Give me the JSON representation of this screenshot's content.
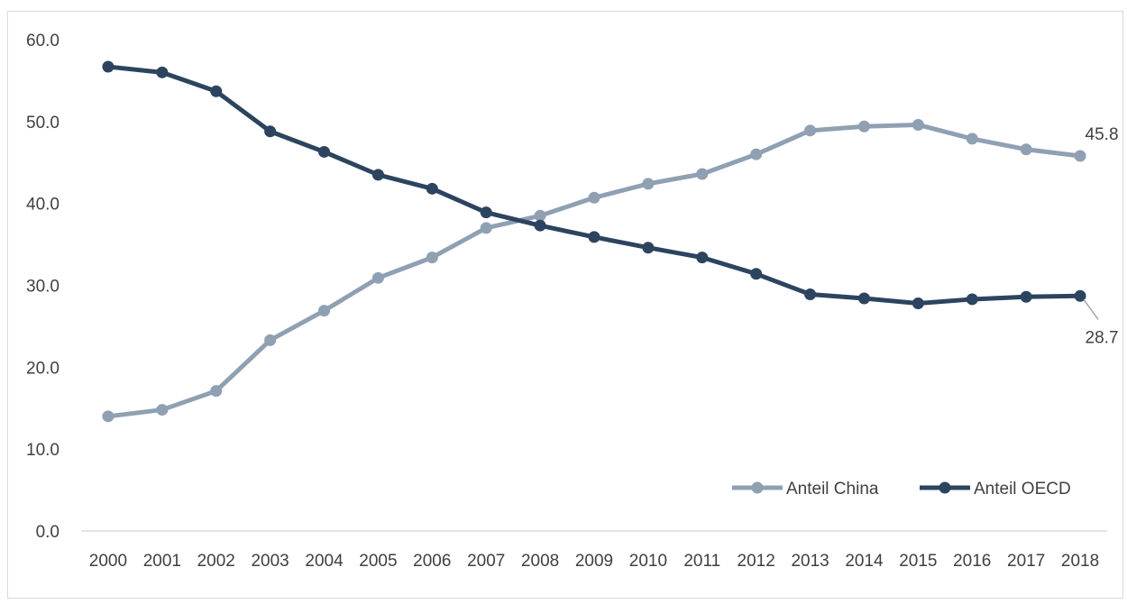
{
  "chart_data": {
    "type": "line",
    "title": "",
    "xlabel": "",
    "ylabel": "",
    "categories": [
      "2000",
      "2001",
      "2002",
      "2003",
      "2004",
      "2005",
      "2006",
      "2007",
      "2008",
      "2009",
      "2010",
      "2011",
      "2012",
      "2013",
      "2014",
      "2015",
      "2016",
      "2017",
      "2018"
    ],
    "ylim": [
      0,
      60
    ],
    "yticks": [
      "0.0",
      "10.0",
      "20.0",
      "30.0",
      "40.0",
      "50.0",
      "60.0"
    ],
    "grid": false,
    "legend_position": "bottom-right",
    "series": [
      {
        "name": "Anteil China",
        "color": "#8fa0b3",
        "values": [
          14.0,
          14.8,
          17.1,
          23.3,
          26.9,
          30.9,
          33.4,
          37.0,
          38.5,
          40.7,
          42.4,
          43.6,
          46.0,
          48.9,
          49.4,
          49.6,
          47.9,
          46.6,
          45.8
        ],
        "end_label": "45.8"
      },
      {
        "name": "Anteil OECD",
        "color": "#2c445f",
        "values": [
          56.7,
          56.0,
          53.7,
          48.8,
          46.3,
          43.5,
          41.8,
          38.9,
          37.3,
          35.9,
          34.6,
          33.4,
          31.4,
          28.9,
          28.4,
          27.8,
          28.3,
          28.6,
          28.7
        ],
        "end_label": "28.7"
      }
    ]
  }
}
